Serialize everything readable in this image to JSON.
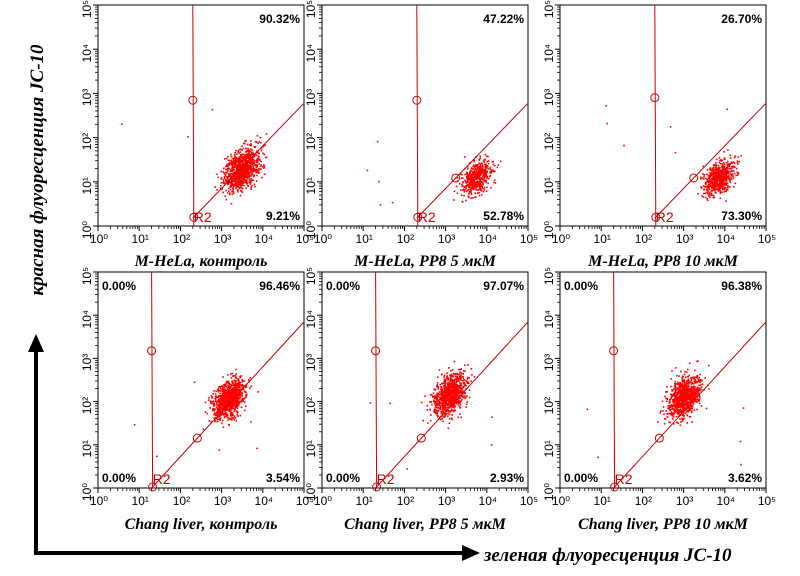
{
  "figure": {
    "y_axis_caption": "красная флуоресценция JC-10",
    "x_axis_caption": "зеленая флуоресценция JC-10",
    "dot_color": "#ff0000",
    "gate_color": "#cc0000",
    "gate_label": "R2"
  },
  "chart_data": [
    {
      "type": "scatter",
      "title": "M-HeLa, контроль",
      "xscale": "log",
      "yscale": "log",
      "xlim": [
        1,
        100000
      ],
      "ylim": [
        1,
        100000
      ],
      "x_ticks": [
        "10⁰",
        "10¹",
        "10²",
        "10³",
        "10⁴",
        "10⁵"
      ],
      "y_ticks": [
        "10⁰",
        "10¹",
        "10²",
        "10³",
        "10⁴",
        "10⁵"
      ],
      "quadrant_percentages": {
        "upper_left": "",
        "upper_right": "90.32%",
        "lower_left": "",
        "lower_right": "9.21%"
      },
      "gate": {
        "vertical_x": 200,
        "marker_upper": [
          200,
          700
        ],
        "diagonal_from": [
          200,
          1.5
        ],
        "diagonal_to": [
          100000,
          600
        ]
      },
      "population": {
        "center_x": 3000,
        "center_y": 20,
        "spread_x": 0.22,
        "spread_y": 0.22,
        "count": 900
      }
    },
    {
      "type": "scatter",
      "title": "M-HeLa, PP8 5 мкМ",
      "xscale": "log",
      "yscale": "log",
      "xlim": [
        1,
        100000
      ],
      "ylim": [
        1,
        100000
      ],
      "x_ticks": [
        "10⁰",
        "10¹",
        "10²",
        "10³",
        "10⁴",
        "10⁵"
      ],
      "y_ticks": [
        "10⁰",
        "10¹",
        "10²",
        "10³",
        "10⁴",
        "10⁵"
      ],
      "quadrant_percentages": {
        "upper_left": "",
        "upper_right": "47.22%",
        "lower_left": "",
        "lower_right": "52.78%"
      },
      "gate": {
        "vertical_x": 200,
        "marker_upper": [
          200,
          700
        ],
        "diagonal_from": [
          200,
          1.5
        ],
        "diagonal_to": [
          100000,
          600
        ]
      },
      "population": {
        "center_x": 5500,
        "center_y": 13,
        "spread_x": 0.18,
        "spread_y": 0.18,
        "count": 500
      }
    },
    {
      "type": "scatter",
      "title": "M-HeLa, PP8 10 мкМ",
      "xscale": "log",
      "yscale": "log",
      "xlim": [
        1,
        100000
      ],
      "ylim": [
        1,
        100000
      ],
      "x_ticks": [
        "10⁰",
        "10¹",
        "10²",
        "10³",
        "10⁴",
        "10⁵"
      ],
      "y_ticks": [
        "10⁰",
        "10¹",
        "10²",
        "10³",
        "10⁴",
        "10⁵"
      ],
      "quadrant_percentages": {
        "upper_left": "",
        "upper_right": "26.70%",
        "lower_left": "",
        "lower_right": "73.30%"
      },
      "gate": {
        "vertical_x": 200,
        "marker_upper": [
          200,
          800
        ],
        "diagonal_from": [
          200,
          1.5
        ],
        "diagonal_to": [
          100000,
          600
        ]
      },
      "population": {
        "center_x": 7000,
        "center_y": 13,
        "spread_x": 0.18,
        "spread_y": 0.18,
        "count": 650
      }
    },
    {
      "type": "scatter",
      "title": "Chang liver, контроль",
      "xscale": "log",
      "yscale": "log",
      "xlim": [
        1,
        100000
      ],
      "ylim": [
        1,
        100000
      ],
      "x_ticks": [
        "10⁰",
        "10¹",
        "10²",
        "10³",
        "10⁴",
        "10⁵"
      ],
      "y_ticks": [
        "10⁰",
        "10¹",
        "10²",
        "10³",
        "10⁴",
        "10⁵"
      ],
      "quadrant_percentages": {
        "upper_left": "0.00%",
        "upper_right": "96.46%",
        "lower_left": "0.00%",
        "lower_right": "3.54%"
      },
      "gate": {
        "vertical_x": 20,
        "marker_upper": [
          20,
          1500
        ],
        "diagonal_from": [
          20,
          1
        ],
        "diagonal_to": [
          100000,
          7000
        ]
      },
      "population": {
        "center_x": 1500,
        "center_y": 120,
        "spread_x": 0.2,
        "spread_y": 0.22,
        "count": 900
      }
    },
    {
      "type": "scatter",
      "title": "Chang liver, PP8 5 мкМ",
      "xscale": "log",
      "yscale": "log",
      "xlim": [
        1,
        100000
      ],
      "ylim": [
        1,
        100000
      ],
      "x_ticks": [
        "10⁰",
        "10¹",
        "10²",
        "10³",
        "10⁴",
        "10⁵"
      ],
      "y_ticks": [
        "10⁰",
        "10¹",
        "10²",
        "10³",
        "10⁴",
        "10⁵"
      ],
      "quadrant_percentages": {
        "upper_left": "0.00%",
        "upper_right": "97.07%",
        "lower_left": "0.00%",
        "lower_right": "2.93%"
      },
      "gate": {
        "vertical_x": 20,
        "marker_upper": [
          20,
          1500
        ],
        "diagonal_from": [
          20,
          1
        ],
        "diagonal_to": [
          100000,
          7000
        ]
      },
      "population": {
        "center_x": 1200,
        "center_y": 150,
        "spread_x": 0.2,
        "spread_y": 0.22,
        "count": 900
      }
    },
    {
      "type": "scatter",
      "title": "Chang liver, PP8 10 мкМ",
      "xscale": "log",
      "yscale": "log",
      "xlim": [
        1,
        100000
      ],
      "ylim": [
        1,
        100000
      ],
      "x_ticks": [
        "10⁰",
        "10¹",
        "10²",
        "10³",
        "10⁴",
        "10⁵"
      ],
      "y_ticks": [
        "10⁰",
        "10¹",
        "10²",
        "10³",
        "10⁴",
        "10⁵"
      ],
      "quadrant_percentages": {
        "upper_left": "0.00%",
        "upper_right": "96.38%",
        "lower_left": "0.00%",
        "lower_right": "3.62%"
      },
      "gate": {
        "vertical_x": 20,
        "marker_upper": [
          20,
          1500
        ],
        "diagonal_from": [
          20,
          1
        ],
        "diagonal_to": [
          100000,
          7000
        ]
      },
      "population": {
        "center_x": 1000,
        "center_y": 130,
        "spread_x": 0.2,
        "spread_y": 0.22,
        "count": 900
      }
    }
  ]
}
